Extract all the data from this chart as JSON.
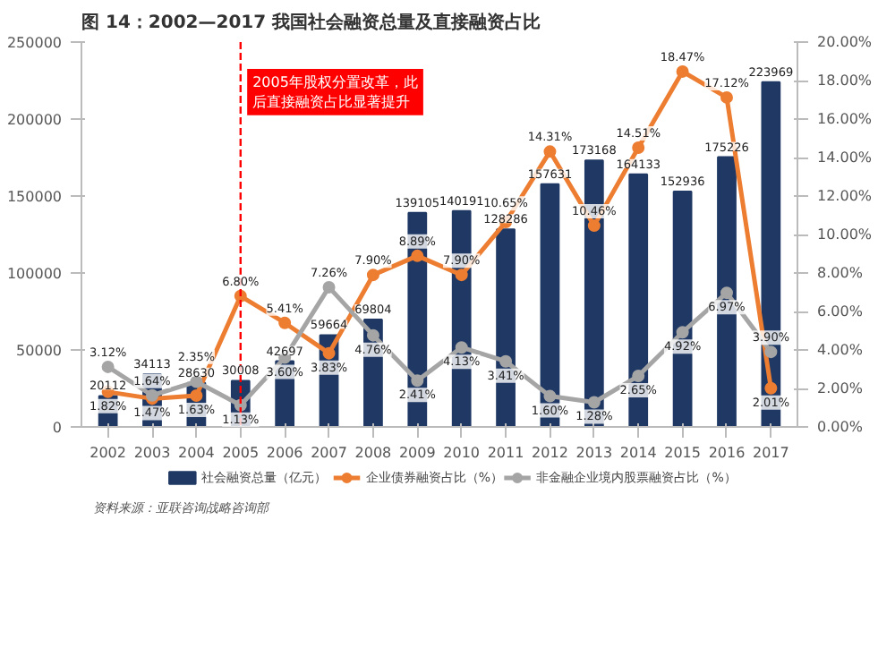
{
  "chart_data": {
    "type": "bar",
    "title": "图 14：2002—2017 我国社会融资总量及直接融资占比",
    "categories": [
      "2002",
      "2003",
      "2004",
      "2005",
      "2006",
      "2007",
      "2008",
      "2009",
      "2010",
      "2011",
      "2012",
      "2013",
      "2014",
      "2015",
      "2016",
      "2017"
    ],
    "series": [
      {
        "name": "社会融资总量（亿元）",
        "color": "#1f3864",
        "values": [
          20112,
          34113,
          28630,
          30008,
          42697,
          59664,
          69804,
          139105,
          140191,
          128286,
          157631,
          173168,
          164133,
          152936,
          175226,
          223969
        ],
        "value_labels": [
          "20112",
          "34113",
          "28630",
          "30008",
          "42697",
          "59664",
          "69804",
          "139105",
          "140191",
          "128286",
          "157631",
          "173168",
          "164133",
          "152936",
          "175226",
          "223969"
        ]
      },
      {
        "name": "企业债券融资占比（%）",
        "type": "line",
        "axis": "y2",
        "color": "#ed7d31",
        "values": [
          1.82,
          1.47,
          1.63,
          6.8,
          5.41,
          3.83,
          7.9,
          8.89,
          7.9,
          10.65,
          14.31,
          10.46,
          14.51,
          18.47,
          17.12,
          2.01
        ],
        "value_labels": [
          "1.82%",
          "1.47%",
          "1.63%",
          "6.80%",
          "5.41%",
          "3.83%",
          "7.90%",
          "8.89%",
          "7.90%",
          "10.65%",
          "14.31%",
          "10.46%",
          "14.51%",
          "18.47%",
          "17.12%",
          "2.01%"
        ]
      },
      {
        "name": "非金融企业境内股票融资占比（%）",
        "type": "line",
        "axis": "y2",
        "color": "#a5a5a5",
        "values": [
          3.12,
          1.64,
          2.35,
          1.13,
          3.6,
          7.26,
          4.76,
          2.41,
          4.13,
          3.41,
          1.6,
          1.28,
          2.65,
          4.92,
          6.97,
          3.9
        ],
        "value_labels": [
          "3.12%",
          "1.64%",
          "2.35%",
          "1.13%",
          "3.60%",
          "7.26%",
          "4.76%",
          "2.41%",
          "4.13%",
          "3.41%",
          "1.60%",
          "1.28%",
          "2.65%",
          "4.92%",
          "6.97%",
          "3.90%"
        ]
      }
    ],
    "ylim": [
      0,
      250000
    ],
    "yticks": [
      0,
      50000,
      100000,
      150000,
      200000,
      250000
    ],
    "y2lim": [
      0,
      20
    ],
    "y2ticks": [
      {
        "value": 0,
        "label": "0.00%"
      },
      {
        "value": 2,
        "label": "2.00%"
      },
      {
        "value": 4,
        "label": "4.00%"
      },
      {
        "value": 6,
        "label": "6.00%"
      },
      {
        "value": 8,
        "label": "8.00%"
      },
      {
        "value": 10,
        "label": "10.00%"
      },
      {
        "value": 12,
        "label": "12.00%"
      },
      {
        "value": 14,
        "label": "14.00%"
      },
      {
        "value": 16,
        "label": "16.00%"
      },
      {
        "value": 18,
        "label": "18.00%"
      },
      {
        "value": 20,
        "label": "20.00%"
      }
    ],
    "ref_lines": [
      {
        "axis": "x",
        "value": "2005",
        "label": "2005年股权分置改革，此后直接融资占比显著提升",
        "color": "#ff0000",
        "line_style": "dashed"
      }
    ],
    "annotations": [
      "资料来源：亚联咨询战略咨询部"
    ],
    "marker": "circle",
    "grid": false,
    "legend": "bottom"
  }
}
